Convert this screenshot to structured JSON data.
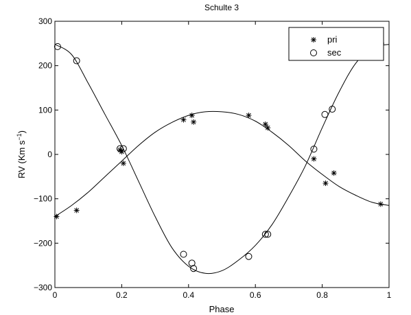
{
  "chart_data": {
    "type": "scatter",
    "title": "Schulte 3",
    "xlabel": "Phase",
    "ylabel_main": "RV (Km s",
    "ylabel_sup": "−1",
    "ylabel_tail": ")",
    "xlim": [
      0,
      1
    ],
    "ylim": [
      -300,
      300
    ],
    "x_ticks": [
      0,
      0.2,
      0.4,
      0.6,
      0.8,
      1
    ],
    "x_tick_labels": [
      "0",
      "0.2",
      "0.4",
      "0.6",
      "0.8",
      "1"
    ],
    "y_ticks": [
      -300,
      -200,
      -100,
      0,
      100,
      200,
      300
    ],
    "y_tick_labels": [
      "−300",
      "−200",
      "−100",
      "0",
      "100",
      "200",
      "300"
    ],
    "grid": false,
    "legend": {
      "placement": "top-right",
      "entries": [
        {
          "label": "pri",
          "marker": "asterisk"
        },
        {
          "label": "sec",
          "marker": "circle"
        }
      ]
    },
    "series": [
      {
        "name": "pri",
        "marker": "asterisk",
        "points": [
          {
            "x": 0.005,
            "y": -140
          },
          {
            "x": 0.065,
            "y": -126
          },
          {
            "x": 0.195,
            "y": 10
          },
          {
            "x": 0.2,
            "y": 6
          },
          {
            "x": 0.205,
            "y": -20
          },
          {
            "x": 0.385,
            "y": 78
          },
          {
            "x": 0.41,
            "y": 88
          },
          {
            "x": 0.415,
            "y": 73
          },
          {
            "x": 0.58,
            "y": 88
          },
          {
            "x": 0.63,
            "y": 68
          },
          {
            "x": 0.637,
            "y": 60
          },
          {
            "x": 0.775,
            "y": -10
          },
          {
            "x": 0.81,
            "y": -65
          },
          {
            "x": 0.835,
            "y": -42
          },
          {
            "x": 0.975,
            "y": -112
          }
        ]
      },
      {
        "name": "sec",
        "marker": "circle",
        "points": [
          {
            "x": 0.008,
            "y": 243
          },
          {
            "x": 0.065,
            "y": 211
          },
          {
            "x": 0.195,
            "y": 13
          },
          {
            "x": 0.205,
            "y": 13
          },
          {
            "x": 0.385,
            "y": -225
          },
          {
            "x": 0.41,
            "y": -245
          },
          {
            "x": 0.415,
            "y": -257
          },
          {
            "x": 0.58,
            "y": -230
          },
          {
            "x": 0.63,
            "y": -180
          },
          {
            "x": 0.637,
            "y": -180
          },
          {
            "x": 0.775,
            "y": 12
          },
          {
            "x": 0.808,
            "y": 90
          },
          {
            "x": 0.83,
            "y": 102
          },
          {
            "x": 0.975,
            "y": 250
          }
        ]
      }
    ],
    "curves": [
      {
        "for": "pri",
        "x": [
          0,
          0.05,
          0.1,
          0.15,
          0.2,
          0.25,
          0.3,
          0.35,
          0.4,
          0.45,
          0.5,
          0.55,
          0.6,
          0.65,
          0.7,
          0.75,
          0.8,
          0.85,
          0.9,
          0.95,
          1
        ],
        "y": [
          -140,
          -115,
          -85,
          -50,
          -15,
          20,
          50,
          72,
          88,
          96,
          96,
          90,
          75,
          50,
          20,
          -15,
          -45,
          -72,
          -92,
          -108,
          -115
        ]
      },
      {
        "for": "sec",
        "x": [
          0,
          0.05,
          0.1,
          0.15,
          0.2,
          0.25,
          0.3,
          0.35,
          0.4,
          0.45,
          0.5,
          0.55,
          0.6,
          0.65,
          0.7,
          0.75,
          0.8,
          0.85,
          0.9,
          0.95,
          1
        ],
        "y": [
          248,
          225,
          160,
          90,
          20,
          -60,
          -140,
          -210,
          -252,
          -268,
          -262,
          -238,
          -205,
          -158,
          -95,
          -25,
          60,
          140,
          205,
          240,
          248
        ]
      }
    ]
  }
}
